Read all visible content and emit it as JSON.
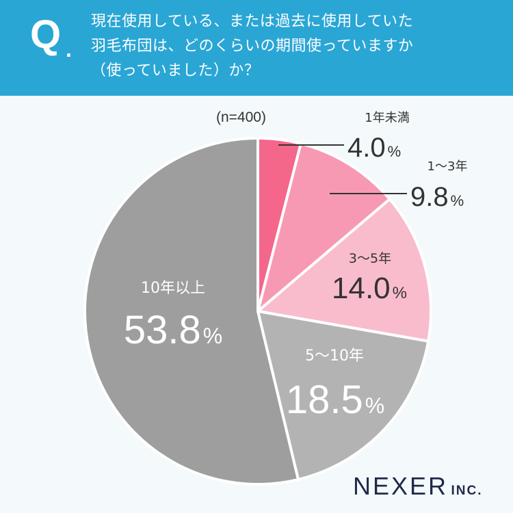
{
  "question": {
    "mark": "Q",
    "mark_dot": ".",
    "lines": [
      "現在使用している、または過去に使用していた",
      "羽毛布団は、どのくらいの期間使っていますか",
      "（使っていました）か？"
    ]
  },
  "sample_size": "(n=400)",
  "brand": {
    "main": "NEXER",
    "suffix": "INC."
  },
  "chart_data": {
    "type": "pie",
    "start_angle_deg": 0,
    "direction": "clockwise",
    "unit": "%",
    "slices": [
      {
        "label": "1年未満",
        "value": 4.0,
        "color": "#f4668a"
      },
      {
        "label": "1〜3年",
        "value": 9.8,
        "color": "#f799b3"
      },
      {
        "label": "3〜5年",
        "value": 14.0,
        "color": "#f9bccd"
      },
      {
        "label": "5〜10年",
        "value": 18.5,
        "color": "#b3b3b3"
      },
      {
        "label": "10年以上",
        "value": 53.8,
        "color": "#9e9e9e"
      }
    ],
    "display_values": [
      "4.0",
      "9.8",
      "14.0",
      "18.5",
      "53.8"
    ]
  }
}
